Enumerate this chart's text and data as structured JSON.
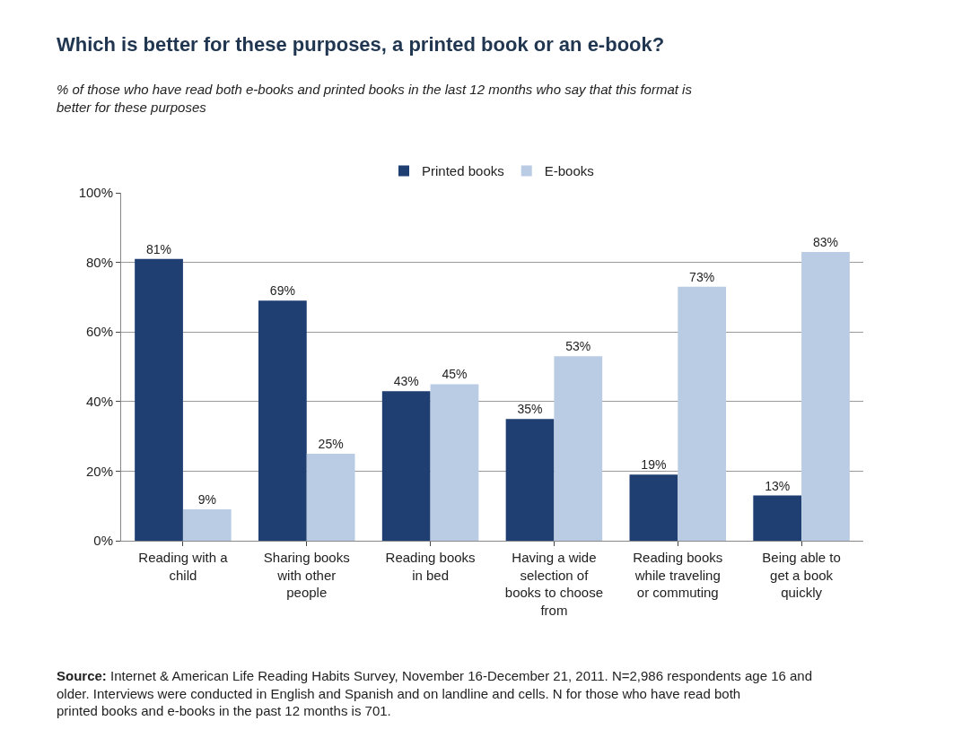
{
  "chart_data": {
    "type": "bar",
    "title": "Which is better for these purposes, a printed book or an e-book?",
    "subtitle": "% of those who have read both e-books and printed books in the last 12 months who say that this format is better for these purposes",
    "categories": [
      "Reading with a child",
      "Sharing books with other people",
      "Reading books in bed",
      "Having a wide selection of books to choose from",
      "Reading books while traveling or commuting",
      "Being able to get a book quickly"
    ],
    "series": [
      {
        "name": "Printed books",
        "color": "#1f3f73",
        "values": [
          81,
          69,
          43,
          35,
          19,
          13
        ],
        "value_labels": [
          "81%",
          "69%",
          "43%",
          "35%",
          "19%",
          "13%"
        ]
      },
      {
        "name": "E-books",
        "color": "#b9cce4",
        "values": [
          9,
          25,
          45,
          53,
          73,
          83
        ],
        "value_labels": [
          "9%",
          "25%",
          "45%",
          "53%",
          "73%",
          "83%"
        ]
      }
    ],
    "ylim": [
      0,
      100
    ],
    "yticks": [
      {
        "value": 0,
        "label": "0%"
      },
      {
        "value": 20,
        "label": "20%"
      },
      {
        "value": 40,
        "label": "40%"
      },
      {
        "value": 60,
        "label": "60%"
      },
      {
        "value": 80,
        "label": "80%"
      },
      {
        "value": 100,
        "label": "100%"
      }
    ],
    "grid": "y",
    "legend": "top",
    "annotations": [
      "Source: Internet & American Life Reading Habits Survey, November 16-December 21, 2011. N=2,986 respondents age 16 and older. Interviews were conducted in English and Spanish and on landline and cells. N for those who have read both printed books and e-books in the past 12 months is 701."
    ]
  }
}
